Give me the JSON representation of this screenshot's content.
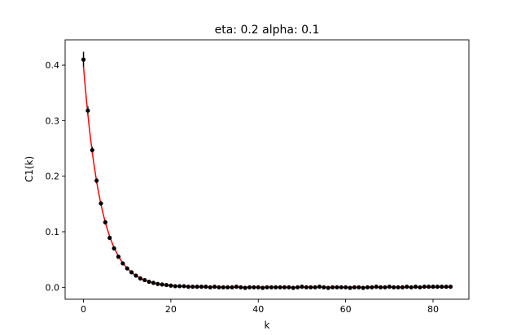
{
  "chart_data": {
    "type": "scatter",
    "title": "eta: 0.2 alpha: 0.1",
    "xlabel": "k",
    "ylabel": "C1(k)",
    "xlim": [
      -4.2,
      88.2
    ],
    "ylim": [
      -0.0215,
      0.4455
    ],
    "xticks": [
      0,
      20,
      40,
      60,
      80
    ],
    "yticks": [
      0.0,
      0.1,
      0.2,
      0.3,
      0.4
    ],
    "ytick_labels": [
      "0.0",
      "0.1",
      "0.2",
      "0.3",
      "0.4"
    ],
    "grid": false,
    "legend": "none",
    "series": [
      {
        "kind": "errorbar",
        "color": "#000000",
        "x": [
          0,
          1,
          2,
          3,
          4,
          5,
          6,
          7,
          8,
          9,
          10,
          11,
          12,
          13,
          14,
          15,
          16,
          17,
          18,
          19,
          20,
          21,
          22,
          23,
          24,
          25,
          26,
          27,
          28,
          29,
          30,
          31,
          32,
          33,
          34,
          35,
          36,
          37,
          38,
          39,
          40,
          41,
          42,
          43,
          44,
          45,
          46,
          47,
          48,
          49,
          50,
          51,
          52,
          53,
          54,
          55,
          56,
          57,
          58,
          59,
          60,
          61,
          62,
          63,
          64,
          65,
          66,
          67,
          68,
          69,
          70,
          71,
          72,
          73,
          74,
          75,
          76,
          77,
          78,
          79,
          80,
          81,
          82,
          83,
          84
        ],
        "y": [
          0.41,
          0.318,
          0.247,
          0.192,
          0.151,
          0.117,
          0.089,
          0.07,
          0.055,
          0.043,
          0.034,
          0.027,
          0.021,
          0.016,
          0.013,
          0.01,
          0.008,
          0.006,
          0.005,
          0.004,
          0.003,
          0.002,
          0.002,
          0.002,
          0.001,
          0.001,
          0.001,
          0.001,
          0.001,
          0.0,
          0.001,
          0.0,
          0.0,
          0.0,
          0.0,
          0.001,
          0.0,
          -0.001,
          0.0,
          0.0,
          0.0,
          -0.001,
          0.0,
          0.0,
          0.0,
          0.0,
          0.0,
          0.0,
          -0.001,
          0.0,
          0.001,
          0.0,
          0.0,
          0.0,
          0.001,
          0.0,
          -0.001,
          0.0,
          0.0,
          0.0,
          0.0,
          -0.001,
          0.0,
          0.0,
          -0.001,
          0.0,
          0.0,
          0.001,
          0.0,
          0.0,
          0.001,
          0.0,
          0.0,
          0.0,
          0.001,
          0.0,
          0.001,
          0.0,
          0.001,
          0.001,
          0.001,
          0.001,
          0.001,
          0.001,
          0.001
        ],
        "yerr": [
          0.014,
          0.008,
          0.006,
          0.005,
          0.004,
          0.004,
          0.003,
          0.003,
          0.003,
          0.002,
          0.002,
          0.002,
          0.002,
          0.002,
          0.002,
          0.002,
          0.002,
          0.002,
          0.002,
          0.002,
          0.002,
          0.002,
          0.002,
          0.002,
          0.002,
          0.002,
          0.002,
          0.002,
          0.002,
          0.002,
          0.002,
          0.002,
          0.002,
          0.002,
          0.002,
          0.002,
          0.002,
          0.002,
          0.002,
          0.002,
          0.002,
          0.002,
          0.002,
          0.002,
          0.002,
          0.002,
          0.002,
          0.002,
          0.002,
          0.002,
          0.002,
          0.002,
          0.002,
          0.002,
          0.002,
          0.002,
          0.002,
          0.002,
          0.002,
          0.002,
          0.002,
          0.002,
          0.002,
          0.002,
          0.002,
          0.002,
          0.002,
          0.002,
          0.002,
          0.002,
          0.002,
          0.002,
          0.002,
          0.002,
          0.002,
          0.002,
          0.002,
          0.002,
          0.002,
          0.002,
          0.002,
          0.002,
          0.002,
          0.002,
          0.002
        ]
      },
      {
        "kind": "fit-line",
        "color": "#ff0000",
        "function": "exponential decay",
        "amplitude": 0.398,
        "rate": 0.245,
        "x_range": [
          0,
          84
        ]
      }
    ]
  }
}
